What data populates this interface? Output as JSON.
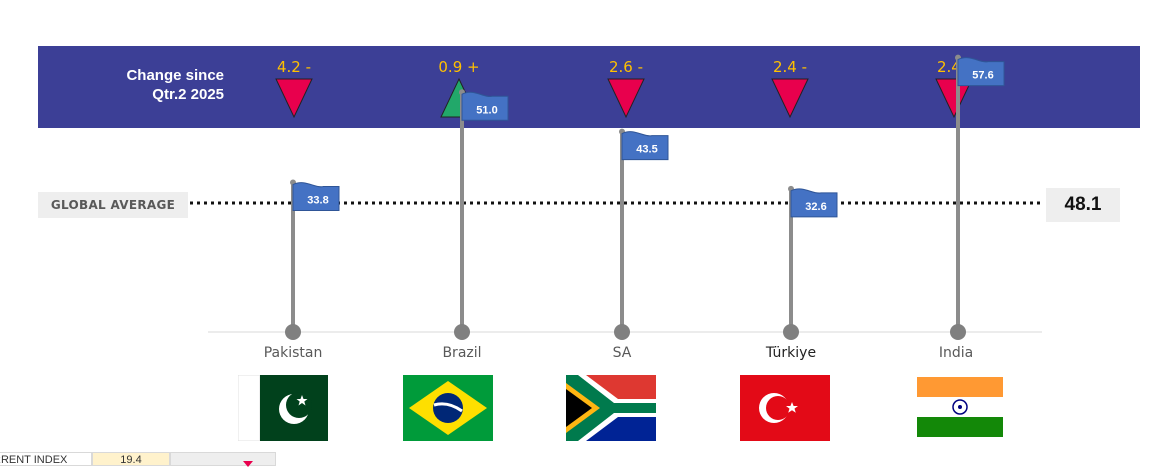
{
  "banner": {
    "title_line1": "Change since",
    "title_line2": "Qtr.2 2025",
    "changes": [
      {
        "country": "Pakistan",
        "value": "4.2 -",
        "direction": "down"
      },
      {
        "country": "Brazil",
        "value": "0.9 +",
        "direction": "up"
      },
      {
        "country": "SA",
        "value": "2.6 -",
        "direction": "down"
      },
      {
        "country": "Türkiye",
        "value": "2.4 -",
        "direction": "down"
      },
      {
        "country": "India",
        "value": "2.4 -",
        "direction": "down"
      }
    ]
  },
  "global_average": {
    "label": "GLOBAL AVERAGE",
    "value": "48.1"
  },
  "chart_data": {
    "type": "scatter",
    "categories": [
      "Pakistan",
      "Brazil",
      "SA",
      "Türkiye",
      "India"
    ],
    "values": [
      33.8,
      51.0,
      43.5,
      32.6,
      57.6
    ],
    "value_labels": [
      "33.8",
      "51.0",
      "43.5",
      "32.6",
      "57.6"
    ],
    "reference_line": {
      "label": "GLOBAL AVERAGE",
      "value": 48.1
    },
    "title": "",
    "xlabel": "",
    "ylabel": ""
  },
  "colors": {
    "banner": "#3c3f96",
    "down_arrow": "#e8004d",
    "up_arrow": "#22a86a",
    "change_text": "#ffc000",
    "flag_marker": "#4472c4",
    "pole": "#8c8c8c"
  },
  "flags": [
    "pakistan-flag",
    "brazil-flag",
    "south-africa-flag",
    "turkiye-flag",
    "india-flag"
  ],
  "footer": {
    "label": "RRENT INDEX",
    "value": "19.4",
    "indicator": "down"
  }
}
